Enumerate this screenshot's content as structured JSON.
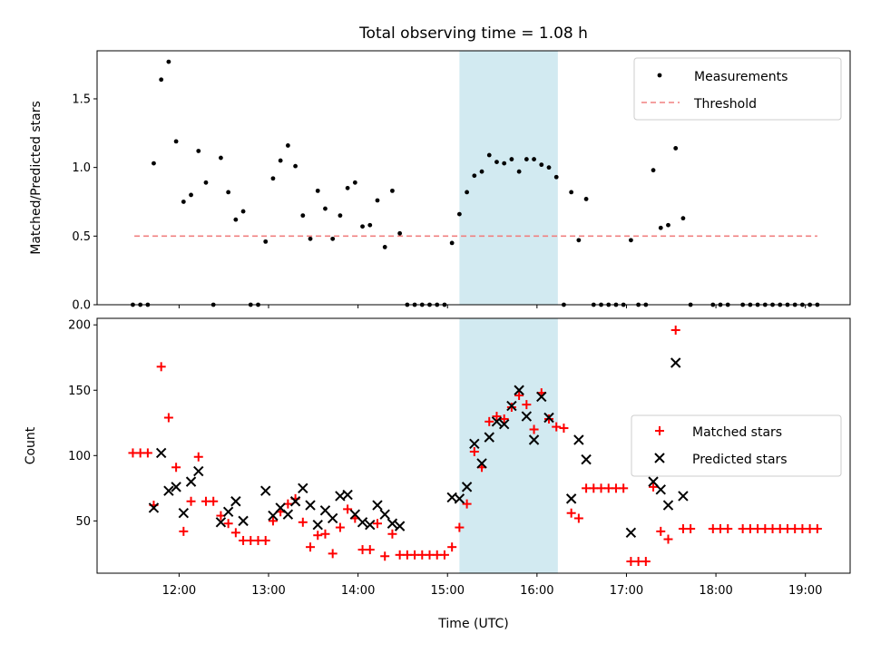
{
  "chart_data": [
    {
      "type": "scatter",
      "title": "Total observing time = 1.08 h",
      "xlabel": "",
      "ylabel": "Matched/Predicted stars",
      "xlim": [
        "11:05",
        "19:30"
      ],
      "ylim": [
        0,
        1.85
      ],
      "yticks": [
        0.0,
        0.5,
        1.0,
        1.5
      ],
      "yticklabels": [
        "0.0",
        "0.5",
        "1.0",
        "1.5"
      ],
      "grid": false,
      "legend_position": "top-right",
      "highlight_span": {
        "start": "15:08",
        "end": "16:14",
        "color": "#add8e6"
      },
      "threshold": {
        "name": "Threshold",
        "value": 0.5,
        "x_range": [
          "11:30",
          "19:08"
        ],
        "color": "#f08080"
      },
      "series": [
        {
          "name": "Measurements",
          "color": "#000000",
          "points": [
            [
              "11:29",
              0
            ],
            [
              "11:34",
              0
            ],
            [
              "11:39",
              0
            ],
            [
              "11:43",
              1.03
            ],
            [
              "11:48",
              1.64
            ],
            [
              "11:53",
              1.77
            ],
            [
              "11:58",
              1.19
            ],
            [
              "12:03",
              0.75
            ],
            [
              "12:08",
              0.8
            ],
            [
              "12:13",
              1.12
            ],
            [
              "12:18",
              0.89
            ],
            [
              "12:23",
              0
            ],
            [
              "12:28",
              1.07
            ],
            [
              "12:33",
              0.82
            ],
            [
              "12:38",
              0.62
            ],
            [
              "12:43",
              0.68
            ],
            [
              "12:48",
              0
            ],
            [
              "12:53",
              0
            ],
            [
              "12:58",
              0.46
            ],
            [
              "13:03",
              0.92
            ],
            [
              "13:08",
              1.05
            ],
            [
              "13:13",
              1.16
            ],
            [
              "13:18",
              1.01
            ],
            [
              "13:23",
              0.65
            ],
            [
              "13:28",
              0.48
            ],
            [
              "13:33",
              0.83
            ],
            [
              "13:38",
              0.7
            ],
            [
              "13:43",
              0.48
            ],
            [
              "13:48",
              0.65
            ],
            [
              "13:53",
              0.85
            ],
            [
              "13:58",
              0.89
            ],
            [
              "14:03",
              0.57
            ],
            [
              "14:08",
              0.58
            ],
            [
              "14:13",
              0.76
            ],
            [
              "14:18",
              0.42
            ],
            [
              "14:23",
              0.83
            ],
            [
              "14:28",
              0.52
            ],
            [
              "14:33",
              0
            ],
            [
              "14:38",
              0
            ],
            [
              "14:43",
              0
            ],
            [
              "14:48",
              0
            ],
            [
              "14:53",
              0
            ],
            [
              "14:58",
              0
            ],
            [
              "15:03",
              0.45
            ],
            [
              "15:08",
              0.66
            ],
            [
              "15:13",
              0.82
            ],
            [
              "15:18",
              0.94
            ],
            [
              "15:23",
              0.97
            ],
            [
              "15:28",
              1.09
            ],
            [
              "15:33",
              1.04
            ],
            [
              "15:38",
              1.03
            ],
            [
              "15:43",
              1.06
            ],
            [
              "15:48",
              0.97
            ],
            [
              "15:53",
              1.06
            ],
            [
              "15:58",
              1.06
            ],
            [
              "16:03",
              1.02
            ],
            [
              "16:08",
              1.0
            ],
            [
              "16:13",
              0.93
            ],
            [
              "16:18",
              0
            ],
            [
              "16:23",
              0.82
            ],
            [
              "16:28",
              0.47
            ],
            [
              "16:33",
              0.77
            ],
            [
              "16:38",
              0
            ],
            [
              "16:43",
              0
            ],
            [
              "16:48",
              0
            ],
            [
              "16:53",
              0
            ],
            [
              "16:58",
              0
            ],
            [
              "17:03",
              0.47
            ],
            [
              "17:08",
              0
            ],
            [
              "17:13",
              0
            ],
            [
              "17:18",
              0.98
            ],
            [
              "17:23",
              0.56
            ],
            [
              "17:28",
              0.58
            ],
            [
              "17:33",
              1.14
            ],
            [
              "17:38",
              0.63
            ],
            [
              "17:43",
              0
            ],
            [
              "17:58",
              0
            ],
            [
              "18:03",
              0
            ],
            [
              "18:08",
              0
            ],
            [
              "18:18",
              0
            ],
            [
              "18:23",
              0
            ],
            [
              "18:28",
              0
            ],
            [
              "18:33",
              0
            ],
            [
              "18:38",
              0
            ],
            [
              "18:43",
              0
            ],
            [
              "18:48",
              0
            ],
            [
              "18:53",
              0
            ],
            [
              "18:58",
              0
            ],
            [
              "19:03",
              0
            ],
            [
              "19:08",
              0
            ]
          ]
        }
      ]
    },
    {
      "type": "scatter",
      "title": "",
      "xlabel": "Time (UTC)",
      "ylabel": "Count",
      "xlim": [
        "11:05",
        "19:30"
      ],
      "ylim": [
        10,
        205
      ],
      "yticks": [
        50,
        100,
        150,
        200
      ],
      "yticklabels": [
        "50",
        "100",
        "150",
        "200"
      ],
      "xticks": [
        "12:00",
        "13:00",
        "14:00",
        "15:00",
        "16:00",
        "17:00",
        "18:00",
        "19:00"
      ],
      "grid": false,
      "legend_position": "center-right",
      "highlight_span": {
        "start": "15:08",
        "end": "16:14",
        "color": "#add8e6"
      },
      "series": [
        {
          "name": "Matched stars",
          "marker": "+",
          "color": "#ff0000",
          "points": [
            [
              "11:29",
              102
            ],
            [
              "11:34",
              102
            ],
            [
              "11:39",
              102
            ],
            [
              "11:43",
              62
            ],
            [
              "11:48",
              168
            ],
            [
              "11:53",
              129
            ],
            [
              "11:58",
              91
            ],
            [
              "12:03",
              42
            ],
            [
              "12:08",
              65
            ],
            [
              "12:13",
              99
            ],
            [
              "12:18",
              65
            ],
            [
              "12:23",
              65
            ],
            [
              "12:28",
              54
            ],
            [
              "12:33",
              48
            ],
            [
              "12:38",
              41
            ],
            [
              "12:43",
              35
            ],
            [
              "12:48",
              35
            ],
            [
              "12:53",
              35
            ],
            [
              "12:58",
              35
            ],
            [
              "13:03",
              50
            ],
            [
              "13:08",
              57
            ],
            [
              "13:13",
              63
            ],
            [
              "13:18",
              67
            ],
            [
              "13:23",
              49
            ],
            [
              "13:28",
              30
            ],
            [
              "13:33",
              39
            ],
            [
              "13:38",
              40
            ],
            [
              "13:43",
              25
            ],
            [
              "13:48",
              45
            ],
            [
              "13:53",
              59
            ],
            [
              "13:58",
              52
            ],
            [
              "14:03",
              28
            ],
            [
              "14:08",
              28
            ],
            [
              "14:13",
              48
            ],
            [
              "14:18",
              23
            ],
            [
              "14:23",
              40
            ],
            [
              "14:28",
              24
            ],
            [
              "14:33",
              24
            ],
            [
              "14:38",
              24
            ],
            [
              "14:43",
              24
            ],
            [
              "14:48",
              24
            ],
            [
              "14:53",
              24
            ],
            [
              "14:58",
              24
            ],
            [
              "15:03",
              30
            ],
            [
              "15:08",
              45
            ],
            [
              "15:13",
              63
            ],
            [
              "15:18",
              103
            ],
            [
              "15:23",
              91
            ],
            [
              "15:28",
              126
            ],
            [
              "15:33",
              130
            ],
            [
              "15:38",
              128
            ],
            [
              "15:43",
              137
            ],
            [
              "15:48",
              146
            ],
            [
              "15:53",
              139
            ],
            [
              "15:58",
              120
            ],
            [
              "16:03",
              148
            ],
            [
              "16:08",
              128
            ],
            [
              "16:13",
              122
            ],
            [
              "16:18",
              121
            ],
            [
              "16:23",
              56
            ],
            [
              "16:28",
              52
            ],
            [
              "16:33",
              75
            ],
            [
              "16:38",
              75
            ],
            [
              "16:43",
              75
            ],
            [
              "16:48",
              75
            ],
            [
              "16:53",
              75
            ],
            [
              "16:58",
              75
            ],
            [
              "17:03",
              19
            ],
            [
              "17:08",
              19
            ],
            [
              "17:13",
              19
            ],
            [
              "17:18",
              76
            ],
            [
              "17:23",
              42
            ],
            [
              "17:28",
              36
            ],
            [
              "17:33",
              196
            ],
            [
              "17:38",
              44
            ],
            [
              "17:43",
              44
            ],
            [
              "17:58",
              44
            ],
            [
              "18:03",
              44
            ],
            [
              "18:08",
              44
            ],
            [
              "18:18",
              44
            ],
            [
              "18:23",
              44
            ],
            [
              "18:28",
              44
            ],
            [
              "18:33",
              44
            ],
            [
              "18:38",
              44
            ],
            [
              "18:43",
              44
            ],
            [
              "18:48",
              44
            ],
            [
              "18:53",
              44
            ],
            [
              "18:58",
              44
            ],
            [
              "19:03",
              44
            ],
            [
              "19:08",
              44
            ]
          ]
        },
        {
          "name": "Predicted stars",
          "marker": "x",
          "color": "#000000",
          "points": [
            [
              "11:43",
              60
            ],
            [
              "11:48",
              102
            ],
            [
              "11:53",
              73
            ],
            [
              "11:58",
              76
            ],
            [
              "12:03",
              56
            ],
            [
              "12:08",
              80
            ],
            [
              "12:13",
              88
            ],
            [
              "12:28",
              49
            ],
            [
              "12:33",
              57
            ],
            [
              "12:38",
              65
            ],
            [
              "12:43",
              50
            ],
            [
              "12:58",
              73
            ],
            [
              "13:03",
              54
            ],
            [
              "13:08",
              60
            ],
            [
              "13:13",
              55
            ],
            [
              "13:18",
              65
            ],
            [
              "13:23",
              75
            ],
            [
              "13:28",
              62
            ],
            [
              "13:33",
              47
            ],
            [
              "13:38",
              58
            ],
            [
              "13:43",
              52
            ],
            [
              "13:48",
              69
            ],
            [
              "13:53",
              70
            ],
            [
              "13:58",
              55
            ],
            [
              "14:03",
              49
            ],
            [
              "14:08",
              47
            ],
            [
              "14:13",
              62
            ],
            [
              "14:18",
              55
            ],
            [
              "14:23",
              48
            ],
            [
              "14:28",
              46
            ],
            [
              "15:03",
              68
            ],
            [
              "15:08",
              67
            ],
            [
              "15:13",
              76
            ],
            [
              "15:18",
              109
            ],
            [
              "15:23",
              94
            ],
            [
              "15:28",
              114
            ],
            [
              "15:33",
              126
            ],
            [
              "15:38",
              124
            ],
            [
              "15:43",
              138
            ],
            [
              "15:48",
              150
            ],
            [
              "15:53",
              130
            ],
            [
              "15:58",
              112
            ],
            [
              "16:03",
              145
            ],
            [
              "16:08",
              129
            ],
            [
              "16:23",
              67
            ],
            [
              "16:28",
              112
            ],
            [
              "16:33",
              97
            ],
            [
              "17:03",
              41
            ],
            [
              "17:18",
              80
            ],
            [
              "17:23",
              74
            ],
            [
              "17:28",
              62
            ],
            [
              "17:33",
              171
            ],
            [
              "17:38",
              69
            ]
          ]
        }
      ]
    }
  ]
}
